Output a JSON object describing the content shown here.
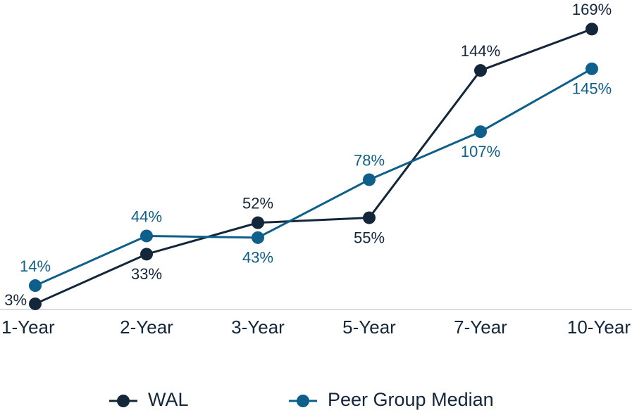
{
  "chart_data": {
    "type": "line",
    "categories": [
      "1-Year",
      "2-Year",
      "3-Year",
      "5-Year",
      "7-Year",
      "10-Year"
    ],
    "series": [
      {
        "name": "WAL",
        "color": "#14263a",
        "values": [
          3,
          33,
          52,
          55,
          144,
          169
        ],
        "value_labels": [
          "3%",
          "33%",
          "52%",
          "55%",
          "144%",
          "169%"
        ]
      },
      {
        "name": "Peer Group Median",
        "color": "#0e5f8a",
        "values": [
          14,
          44,
          43,
          78,
          107,
          145
        ],
        "value_labels": [
          "14%",
          "44%",
          "43%",
          "78%",
          "107%",
          "145%"
        ]
      }
    ],
    "ylim": [
      0,
      170
    ],
    "legend": "bottom"
  }
}
